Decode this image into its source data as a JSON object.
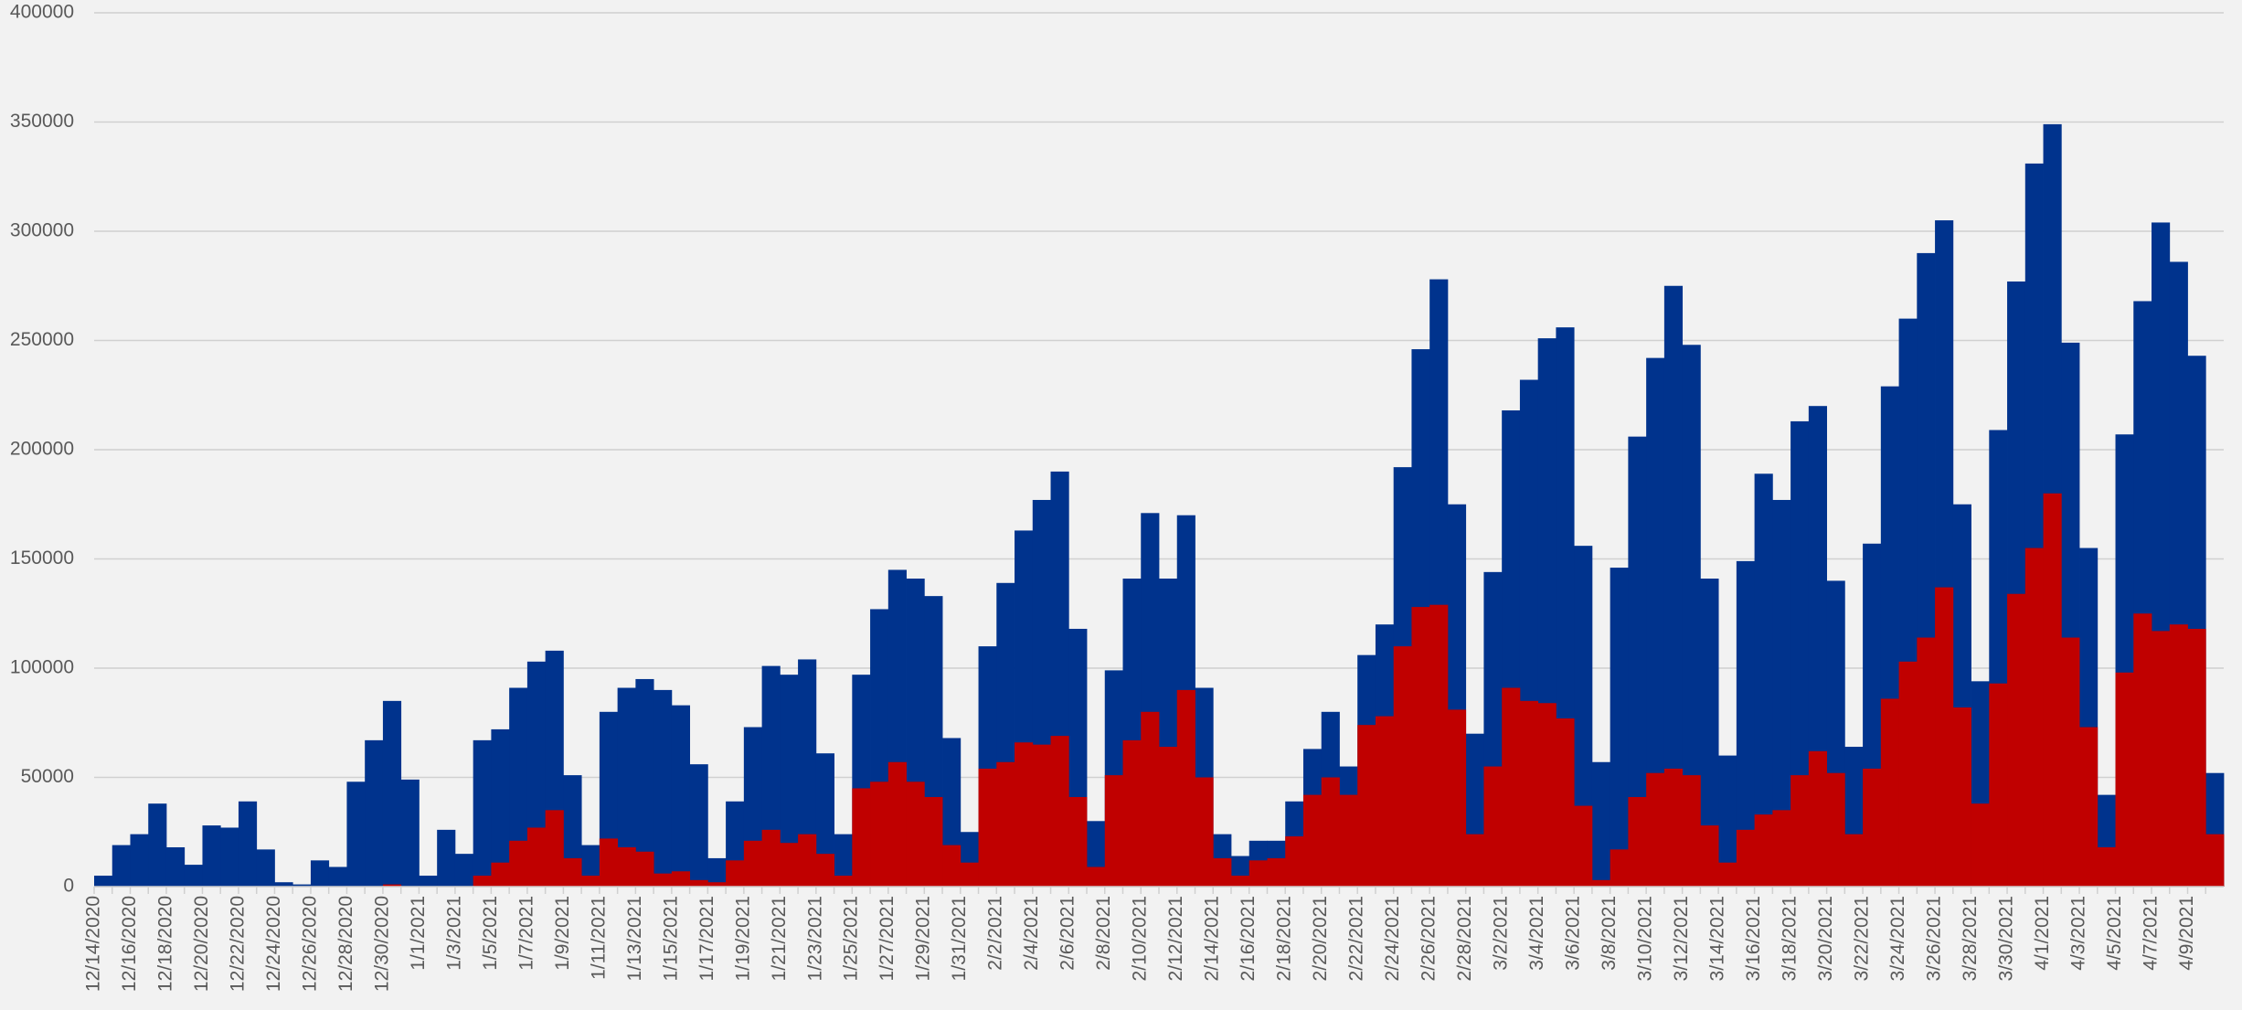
{
  "chart_data": {
    "type": "bar",
    "categories": [
      "12/14/2020",
      null,
      "12/16/2020",
      null,
      "12/18/2020",
      null,
      "12/20/2020",
      null,
      "12/22/2020",
      null,
      "12/24/2020",
      null,
      "12/26/2020",
      null,
      "12/28/2020",
      null,
      "12/30/2020",
      null,
      "1/1/2021",
      null,
      "1/3/2021",
      null,
      "1/5/2021",
      null,
      "1/7/2021",
      null,
      "1/9/2021",
      null,
      "1/11/2021",
      null,
      "1/13/2021",
      null,
      "1/15/2021",
      null,
      "1/17/2021",
      null,
      "1/19/2021",
      null,
      "1/21/2021",
      null,
      "1/23/2021",
      null,
      "1/25/2021",
      null,
      "1/27/2021",
      null,
      "1/29/2021",
      null,
      "1/31/2021",
      null,
      "2/2/2021",
      null,
      "2/4/2021",
      null,
      "2/6/2021",
      null,
      "2/8/2021",
      null,
      "2/10/2021",
      null,
      "2/12/2021",
      null,
      "2/14/2021",
      null,
      "2/16/2021",
      null,
      "2/18/2021",
      null,
      "2/20/2021",
      null,
      "2/22/2021",
      null,
      "2/24/2021",
      null,
      "2/26/2021",
      null,
      "2/28/2021",
      null,
      "3/2/2021",
      null,
      "3/4/2021",
      null,
      "3/6/2021",
      null,
      "3/8/2021",
      null,
      "3/10/2021",
      null,
      "3/12/2021",
      null,
      "3/14/2021",
      null,
      "3/16/2021",
      null,
      "3/18/2021",
      null,
      "3/20/2021",
      null,
      "3/22/2021",
      null,
      "3/24/2021",
      null,
      "3/26/2021",
      null,
      "3/28/2021",
      null,
      "3/30/2021",
      null,
      "4/1/2021",
      null,
      "4/3/2021",
      null,
      "4/5/2021",
      null,
      "4/7/2021",
      null,
      "4/9/2021",
      null
    ],
    "series": [
      {
        "color": "#00338d",
        "values": [
          5000,
          19000,
          24000,
          38000,
          18000,
          10000,
          28000,
          27000,
          39000,
          17000,
          2000,
          1000,
          12000,
          9000,
          48000,
          67000,
          85000,
          49000,
          5000,
          26000,
          15000,
          67000,
          72000,
          91000,
          103000,
          108000,
          51000,
          19000,
          80000,
          91000,
          95000,
          90000,
          83000,
          56000,
          13000,
          39000,
          73000,
          101000,
          97000,
          104000,
          61000,
          24000,
          97000,
          127000,
          145000,
          141000,
          133000,
          68000,
          25000,
          110000,
          139000,
          163000,
          177000,
          190000,
          118000,
          30000,
          99000,
          141000,
          171000,
          141000,
          170000,
          91000,
          24000,
          14000,
          21000,
          21000,
          39000,
          63000,
          80000,
          55000,
          106000,
          120000,
          192000,
          246000,
          278000,
          175000,
          70000,
          144000,
          218000,
          232000,
          251000,
          256000,
          156000,
          57000,
          146000,
          206000,
          242000,
          275000,
          248000,
          141000,
          60000,
          149000,
          189000,
          177000,
          213000,
          220000,
          140000,
          64000,
          157000,
          229000,
          260000,
          290000,
          305000,
          175000,
          94000,
          209000,
          277000,
          331000,
          349000,
          249000,
          155000,
          42000,
          207000,
          268000,
          304000,
          286000,
          243000,
          52000
        ]
      },
      {
        "color": "#c00000",
        "values": [
          0,
          0,
          0,
          0,
          0,
          0,
          0,
          0,
          0,
          0,
          0,
          0,
          0,
          0,
          0,
          0,
          1000,
          0,
          0,
          0,
          0,
          5000,
          11000,
          21000,
          27000,
          35000,
          13000,
          5000,
          22000,
          18000,
          16000,
          6000,
          7000,
          3000,
          2000,
          12000,
          21000,
          26000,
          20000,
          24000,
          15000,
          5000,
          45000,
          48000,
          57000,
          48000,
          41000,
          19000,
          11000,
          54000,
          57000,
          66000,
          65000,
          69000,
          41000,
          9000,
          51000,
          67000,
          80000,
          64000,
          90000,
          50000,
          13000,
          5000,
          12000,
          13000,
          23000,
          42000,
          50000,
          42000,
          74000,
          78000,
          110000,
          128000,
          129000,
          81000,
          24000,
          55000,
          91000,
          85000,
          84000,
          77000,
          37000,
          3000,
          17000,
          41000,
          52000,
          54000,
          51000,
          28000,
          11000,
          26000,
          33000,
          35000,
          51000,
          62000,
          52000,
          24000,
          54000,
          86000,
          103000,
          114000,
          137000,
          82000,
          38000,
          93000,
          134000,
          155000,
          180000,
          114000,
          73000,
          18000,
          98000,
          125000,
          117000,
          120000,
          118000,
          24000
        ]
      }
    ],
    "ylim": [
      0,
      400000
    ],
    "yticks": [
      0,
      50000,
      100000,
      150000,
      200000,
      250000,
      300000,
      350000,
      400000
    ],
    "grid": true
  }
}
